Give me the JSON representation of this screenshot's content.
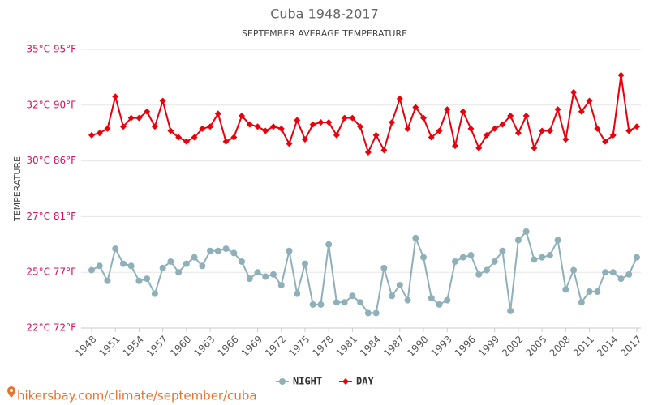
{
  "chart_data": {
    "type": "line",
    "title": "Cuba 1948-2017",
    "subtitle": "SEPTEMBER AVERAGE TEMPERATURE",
    "ylabel": "TEMPERATURE",
    "x": [
      1948,
      1949,
      1950,
      1951,
      1952,
      1953,
      1954,
      1955,
      1956,
      1957,
      1958,
      1959,
      1960,
      1961,
      1962,
      1963,
      1964,
      1965,
      1966,
      1967,
      1968,
      1969,
      1970,
      1971,
      1972,
      1973,
      1974,
      1975,
      1976,
      1977,
      1978,
      1979,
      1980,
      1981,
      1982,
      1983,
      1984,
      1985,
      1986,
      1987,
      1988,
      1989,
      1990,
      1991,
      1992,
      1993,
      1994,
      1995,
      1996,
      1997,
      1998,
      1999,
      2000,
      2001,
      2002,
      2003,
      2004,
      2005,
      2006,
      2007,
      2008,
      2009,
      2010,
      2011,
      2012,
      2013,
      2014,
      2015,
      2016,
      2017
    ],
    "xlim": [
      1948,
      2017
    ],
    "xticks": [
      1948,
      1951,
      1954,
      1957,
      1960,
      1963,
      1966,
      1969,
      1972,
      1975,
      1978,
      1981,
      1984,
      1987,
      1990,
      1993,
      1996,
      1999,
      2002,
      2005,
      2008,
      2011,
      2014,
      2017
    ],
    "ylim": [
      22,
      35
    ],
    "yticks": [
      {
        "value": 22,
        "label": "22°C 72°F"
      },
      {
        "value": 24.6,
        "label": "25°C 77°F"
      },
      {
        "value": 27.2,
        "label": "27°C 81°F"
      },
      {
        "value": 29.8,
        "label": "30°C 86°F"
      },
      {
        "value": 32.4,
        "label": "32°C 90°F"
      },
      {
        "value": 35,
        "label": "35°C 95°F"
      }
    ],
    "grid": true,
    "legend": "bottom",
    "series": [
      {
        "name": "NIGHT",
        "color": "#8fb0b9",
        "values": [
          24.7,
          24.9,
          24.2,
          25.7,
          25.0,
          24.9,
          24.2,
          24.3,
          23.6,
          24.8,
          25.1,
          24.6,
          25.0,
          25.3,
          24.9,
          25.6,
          25.6,
          25.7,
          25.5,
          25.1,
          24.3,
          24.6,
          24.4,
          24.5,
          24.0,
          25.6,
          23.6,
          25.0,
          23.1,
          23.1,
          25.9,
          23.2,
          23.2,
          23.5,
          23.2,
          22.7,
          22.7,
          24.8,
          23.5,
          24.0,
          23.3,
          26.2,
          25.3,
          23.4,
          23.1,
          23.3,
          25.1,
          25.3,
          25.4,
          24.5,
          24.7,
          25.1,
          25.6,
          22.8,
          26.1,
          26.5,
          25.2,
          25.3,
          25.4,
          26.1,
          23.8,
          24.7,
          23.2,
          23.7,
          23.7,
          24.6,
          24.6,
          24.3,
          24.5,
          25.3
        ]
      },
      {
        "name": "DAY",
        "color": "#e8000b",
        "values": [
          31.0,
          31.1,
          31.3,
          32.8,
          31.4,
          31.8,
          31.8,
          32.1,
          31.4,
          32.6,
          31.2,
          30.9,
          30.7,
          30.9,
          31.3,
          31.4,
          32.0,
          30.7,
          30.9,
          31.9,
          31.5,
          31.4,
          31.2,
          31.4,
          31.3,
          30.6,
          31.7,
          30.8,
          31.5,
          31.6,
          31.6,
          31.0,
          31.8,
          31.8,
          31.4,
          30.2,
          31.0,
          30.3,
          31.6,
          32.7,
          31.3,
          32.3,
          31.8,
          30.9,
          31.2,
          32.2,
          30.5,
          32.1,
          31.3,
          30.4,
          31.0,
          31.3,
          31.5,
          31.9,
          31.1,
          31.9,
          30.4,
          31.2,
          31.2,
          32.2,
          30.8,
          33.0,
          32.1,
          32.6,
          31.3,
          30.7,
          31.0,
          33.8,
          31.2,
          31.4
        ]
      }
    ],
    "watermark": "hikersbay.com/climate/september/cuba"
  }
}
